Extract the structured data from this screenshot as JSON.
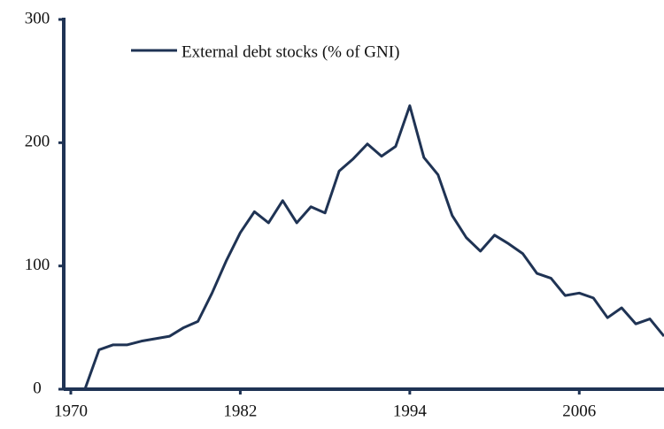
{
  "chart_data": {
    "type": "line",
    "x": [
      1971,
      1972,
      1973,
      1974,
      1975,
      1976,
      1977,
      1978,
      1979,
      1980,
      1981,
      1982,
      1983,
      1984,
      1985,
      1986,
      1987,
      1988,
      1989,
      1990,
      1991,
      1992,
      1993,
      1994,
      1995,
      1996,
      1997,
      1998,
      1999,
      2000,
      2001,
      2002,
      2003,
      2004,
      2005,
      2006,
      2007,
      2008,
      2009,
      2010,
      2011,
      2012
    ],
    "series": [
      {
        "name": "External debt stocks (% of GNI)",
        "color": "#1f3354",
        "values": [
          0,
          32,
          36,
          36,
          39,
          41,
          43,
          50,
          55,
          78,
          104,
          127,
          144,
          135,
          153,
          135,
          148,
          143,
          177,
          187,
          199,
          189,
          197,
          230,
          188,
          174,
          141,
          123,
          112,
          125,
          118,
          110,
          94,
          90,
          76,
          78,
          74,
          58,
          66,
          53,
          57,
          43
        ]
      }
    ],
    "xlim": [
      1969.5,
      2012
    ],
    "xticks": [
      1970,
      1982,
      1994,
      2006
    ],
    "ylim": [
      0,
      300
    ],
    "yticks": [
      0,
      100,
      200,
      300
    ]
  }
}
